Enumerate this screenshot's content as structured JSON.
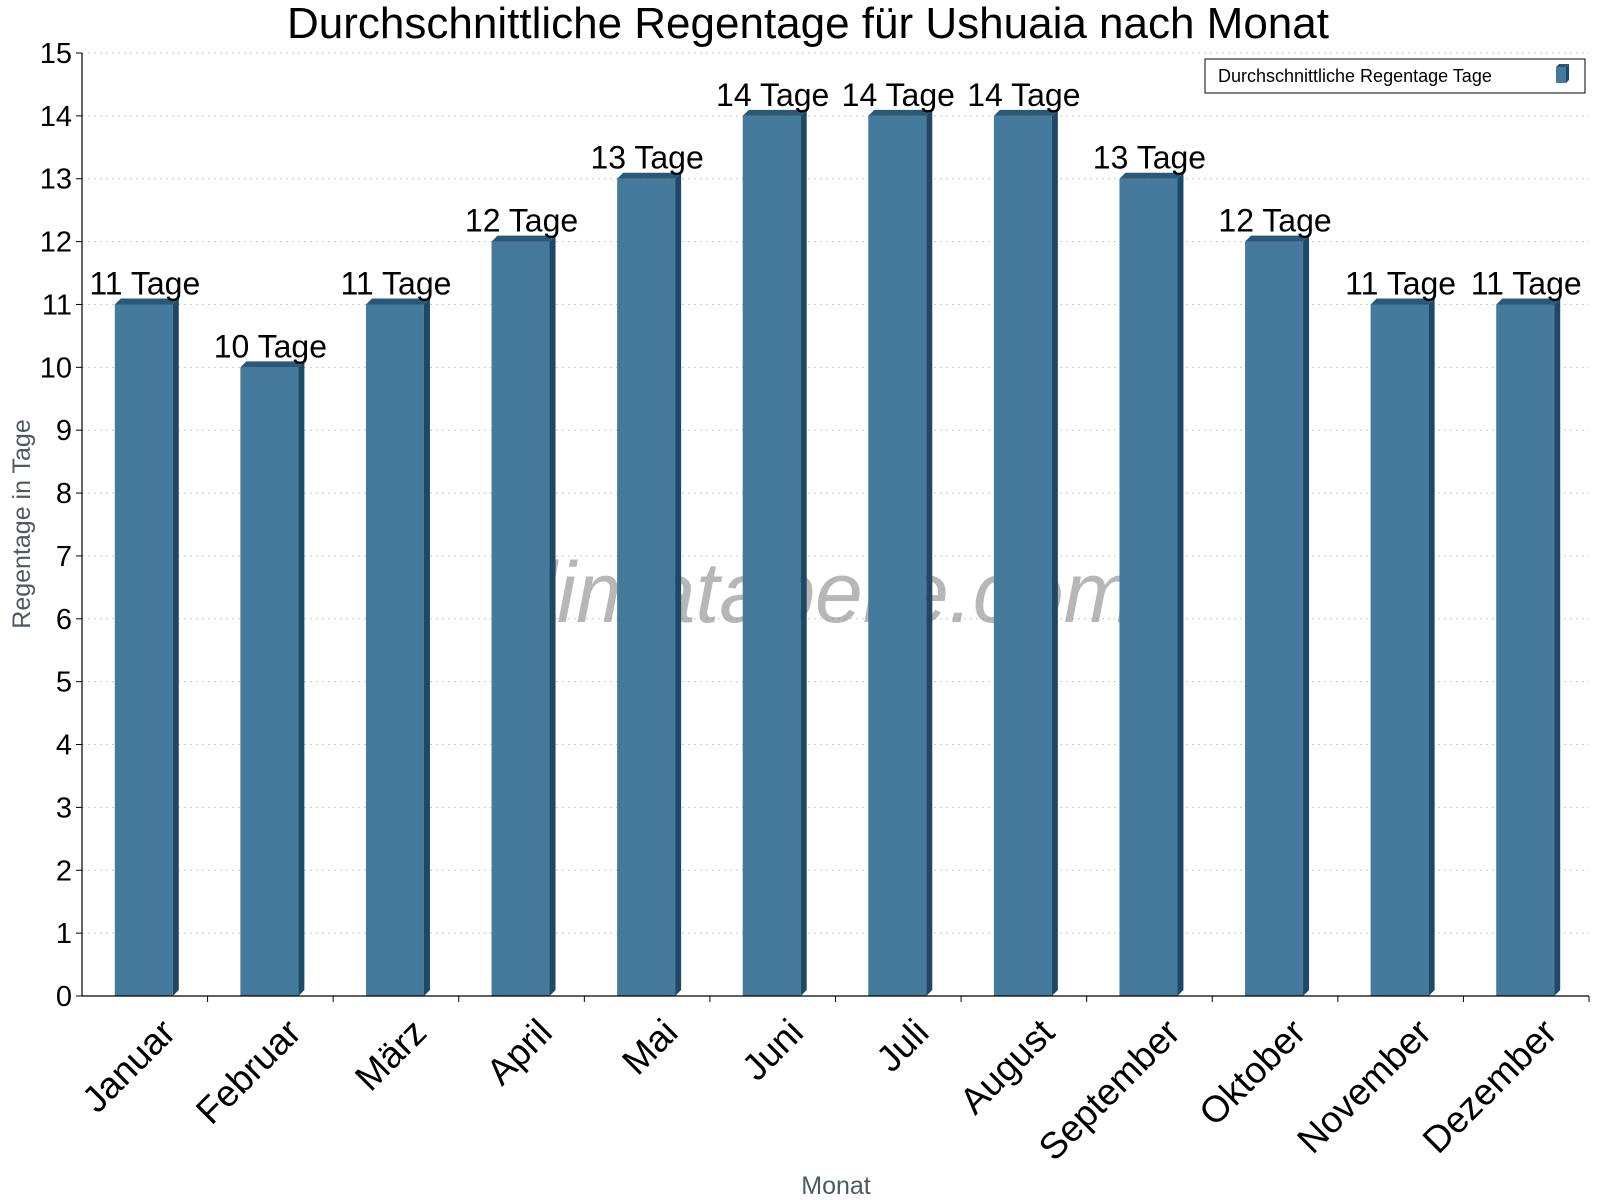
{
  "chart_data": {
    "type": "bar",
    "title": "Durchschnittliche Regentage für Ushuaia nach Monat",
    "xlabel": "Monat",
    "ylabel": "Regentage in Tage",
    "categories": [
      "Januar",
      "Februar",
      "März",
      "April",
      "Mai",
      "Juni",
      "Juli",
      "August",
      "September",
      "Oktober",
      "November",
      "Dezember"
    ],
    "series": [
      {
        "name": "Durchschnittliche Regentage Tage",
        "values": [
          11,
          10,
          11,
          12,
          13,
          14,
          14,
          14,
          13,
          12,
          11,
          11
        ],
        "data_labels": [
          "11 Tage",
          "10 Tage",
          "11 Tage",
          "12 Tage",
          "13 Tage",
          "14 Tage",
          "14 Tage",
          "14 Tage",
          "13 Tage",
          "12 Tage",
          "11 Tage",
          "11 Tage"
        ]
      }
    ],
    "y_ticks": [
      "0",
      "1",
      "2",
      "3",
      "4",
      "5",
      "6",
      "7",
      "8",
      "9",
      "10",
      "11",
      "12",
      "13",
      "14",
      "15"
    ],
    "ylim": [
      0,
      15
    ],
    "grid": true,
    "legend_position": "top-right",
    "watermark": "klimatabelle.com",
    "colors": {
      "bar_front": "#467a9c",
      "bar_side": "#1d4966",
      "bar_top": "#2a5877",
      "grid": "#c8c8c8",
      "axis": "#000000"
    }
  }
}
